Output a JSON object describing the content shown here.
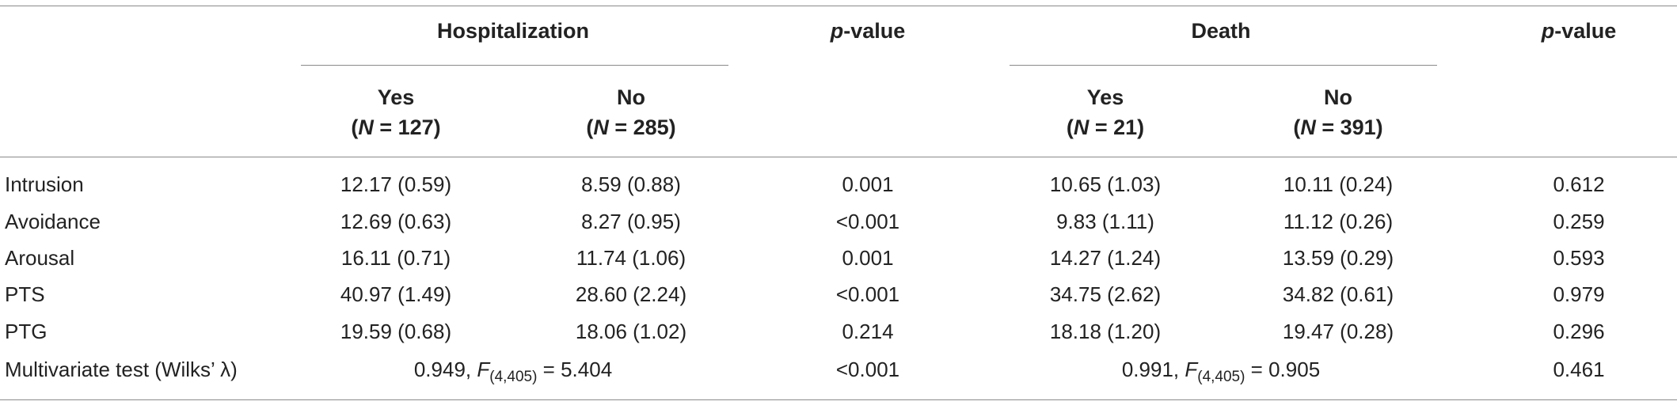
{
  "table": {
    "headers": {
      "hospitalization": "Hospitalization",
      "death": "Death",
      "p_italic": "p",
      "p_rest": "-value",
      "hosp_yes": "Yes",
      "hosp_yes_n_var": "N",
      "hosp_yes_n": " = 127)",
      "hosp_no": "No",
      "hosp_no_n_var": "N",
      "hosp_no_n": " = 285)",
      "death_yes": "Yes",
      "death_yes_n_var": "N",
      "death_yes_n": " = 21)",
      "death_no": "No",
      "death_no_n_var": "N",
      "death_no_n": " = 391)"
    },
    "rows": [
      {
        "label": "Intrusion",
        "hosp_yes": "12.17 (0.59)",
        "hosp_no": "8.59 (0.88)",
        "p1": "0.001",
        "death_yes": "10.65 (1.03)",
        "death_no": "10.11 (0.24)",
        "p2": "0.612"
      },
      {
        "label": "Avoidance",
        "hosp_yes": "12.69 (0.63)",
        "hosp_no": "8.27 (0.95)",
        "p1": "<0.001",
        "death_yes": "9.83 (1.11)",
        "death_no": "11.12 (0.26)",
        "p2": "0.259"
      },
      {
        "label": "Arousal",
        "hosp_yes": "16.11 (0.71)",
        "hosp_no": "11.74 (1.06)",
        "p1": "0.001",
        "death_yes": "14.27 (1.24)",
        "death_no": "13.59 (0.29)",
        "p2": "0.593"
      },
      {
        "label": "PTS",
        "hosp_yes": "40.97 (1.49)",
        "hosp_no": "28.60 (2.24)",
        "p1": "<0.001",
        "death_yes": "34.75 (2.62)",
        "death_no": "34.82 (0.61)",
        "p2": "0.979"
      },
      {
        "label": "PTG",
        "hosp_yes": "19.59 (0.68)",
        "hosp_no": "18.06 (1.02)",
        "p1": "0.214",
        "death_yes": "18.18 (1.20)",
        "death_no": "19.47 (0.28)",
        "p2": "0.296"
      }
    ],
    "multivariate": {
      "label": "Multivariate test (Wilks’ λ)",
      "hosp_lambda": "0.949, ",
      "hosp_F": "F",
      "hosp_sub": "(4,405)",
      "hosp_val": " = 5.404",
      "p1": "<0.001",
      "death_lambda": "0.991, ",
      "death_F": "F",
      "death_sub": "(4,405)",
      "death_val": " = 0.905",
      "p2": "0.461"
    }
  }
}
